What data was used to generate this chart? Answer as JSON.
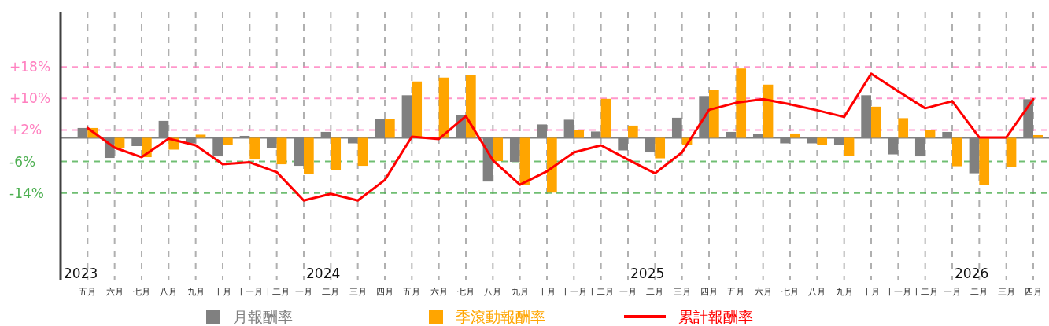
{
  "chart_data": {
    "type": "bar",
    "categories": [
      "五月",
      "六月",
      "七月",
      "八月",
      "九月",
      "十月",
      "十一月",
      "十二月",
      "一月",
      "二月",
      "三月",
      "四月",
      "五月",
      "六月",
      "七月",
      "八月",
      "九月",
      "十月",
      "十一月",
      "十二月",
      "一月",
      "二月",
      "三月",
      "四月",
      "五月",
      "六月",
      "七月",
      "八月",
      "九月",
      "十月",
      "十一月",
      "十二月",
      "一月",
      "二月",
      "三月",
      "四月"
    ],
    "series": [
      {
        "name": "月報酬率",
        "color": "#808080",
        "values": [
          2.5,
          -5.1,
          -2.1,
          4.3,
          -1.4,
          -4.7,
          0.5,
          -2.5,
          -7.1,
          1.5,
          -1.4,
          4.8,
          10.8,
          0,
          5.7,
          -11.1,
          -6.1,
          3.4,
          4.6,
          1.6,
          -3.2,
          -3.7,
          5.1,
          10.6,
          1.5,
          0.9,
          -1.4,
          -1.4,
          -1.7,
          10.8,
          -4.2,
          -4.7,
          1.5,
          -9.0,
          0,
          9.8
        ]
      },
      {
        "name": "季滾動報酬率",
        "color": "#ffa500",
        "values": [
          2.5,
          -2.7,
          -4.9,
          -3.0,
          0.8,
          -1.9,
          -5.5,
          -6.7,
          -9.1,
          -8.1,
          -7.1,
          4.8,
          14.3,
          15.3,
          16.0,
          -5.9,
          -11.9,
          -13.9,
          1.9,
          9.9,
          3.1,
          -5.2,
          -1.7,
          12.1,
          17.6,
          13.5,
          1.1,
          -1.7,
          -4.5,
          7.9,
          5.0,
          2.0,
          -7.2,
          -12.0,
          -7.4,
          0.7
        ]
      },
      {
        "name": "累計報酬率",
        "type": "line",
        "color": "#ff0000",
        "values": [
          2.5,
          -2.5,
          -4.9,
          -0.2,
          -1.9,
          -6.7,
          -6.2,
          -8.7,
          -15.9,
          -14.2,
          -15.9,
          -10.7,
          0.3,
          -0.3,
          5.5,
          -5.7,
          -11.9,
          -8.5,
          -3.7,
          -1.9,
          -5.5,
          -9.0,
          -3.7,
          7.1,
          8.9,
          9.8,
          8.5,
          7.0,
          5.3,
          16.3,
          11.8,
          7.5,
          9.3,
          0.1,
          0.1,
          9.8
        ]
      }
    ],
    "ylim": [
      -36,
      32
    ],
    "yticks": [
      {
        "value": 18,
        "label": "+18%"
      },
      {
        "value": 10,
        "label": "+10%"
      },
      {
        "value": 2,
        "label": "+2%"
      },
      {
        "value": -6,
        "label": "-6%"
      },
      {
        "value": -14,
        "label": "-14%"
      }
    ],
    "ref_lines": [
      {
        "axis": "y",
        "value": 18,
        "color": "#ff7fbf",
        "line_style": "dashed"
      },
      {
        "axis": "y",
        "value": 10,
        "color": "#ff7fbf",
        "line_style": "dashed"
      },
      {
        "axis": "y",
        "value": 2,
        "color": "#ff7fbf",
        "line_style": "dashed"
      },
      {
        "axis": "y",
        "value": -6,
        "color": "#4caf50",
        "line_style": "dashed"
      },
      {
        "axis": "y",
        "value": -14,
        "color": "#4caf50",
        "line_style": "dashed"
      }
    ],
    "annotations": [
      "2023",
      "2024",
      "2025",
      "2026"
    ],
    "grid": "x",
    "legend": "bottom"
  }
}
